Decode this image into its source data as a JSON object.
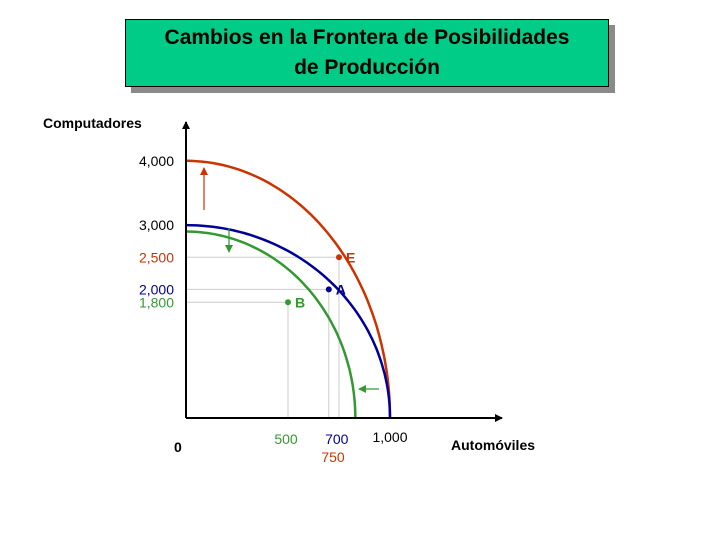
{
  "slide": {
    "title_line1": "Cambios en la Frontera de Posibilidades",
    "title_line2": "de Producción"
  },
  "colors": {
    "title_bg": "#00cc88",
    "original": "#000099",
    "expanded": "#cc3300",
    "contracted": "#339933",
    "axis": "#000000",
    "guide": "#cccccc"
  },
  "chart_data": {
    "type": "line",
    "title": "Cambios en la Frontera de Posibilidades de Producción",
    "xlabel": "Automóviles",
    "ylabel": "Computadores",
    "origin_label": "0",
    "xlim": [
      0,
      1100
    ],
    "ylim": [
      0,
      4750
    ],
    "grid": false,
    "x_tick_labels": [
      {
        "value": 500,
        "label": "500",
        "color": "#339933"
      },
      {
        "value": 700,
        "label": "700",
        "color": "#000099"
      },
      {
        "value": 750,
        "label": "750",
        "color": "#cc3300"
      },
      {
        "value": 1000,
        "label": "1,000",
        "color": "#000000"
      }
    ],
    "y_tick_labels": [
      {
        "value": 4000,
        "label": "4,000",
        "color": "#000000"
      },
      {
        "value": 3000,
        "label": "3,000",
        "color": "#000000"
      },
      {
        "value": 2500,
        "label": "2,500",
        "color": "#cc3300"
      },
      {
        "value": 2000,
        "label": "2,000",
        "color": "#000099"
      },
      {
        "value": 1800,
        "label": "1,800",
        "color": "#339933"
      }
    ],
    "series": [
      {
        "color": "#cc3300",
        "x_intercept": 1000,
        "y_intercept": 4000
      },
      {
        "color": "#000099",
        "x_intercept": 1000,
        "y_intercept": 3000
      },
      {
        "color": "#339933",
        "x_intercept": 830,
        "y_intercept": 2900
      }
    ],
    "points": [
      {
        "label": "E",
        "x": 750,
        "y": 2500,
        "color": "#cc3300"
      },
      {
        "label": "A",
        "x": 700,
        "y": 2000,
        "color": "#000099"
      },
      {
        "label": "B",
        "x": 500,
        "y": 1800,
        "color": "#339933"
      }
    ],
    "shift_arrows": [
      {
        "direction": "up",
        "color": "#cc3300"
      },
      {
        "direction": "down",
        "color": "#339933"
      },
      {
        "direction": "left",
        "color": "#339933"
      }
    ]
  }
}
